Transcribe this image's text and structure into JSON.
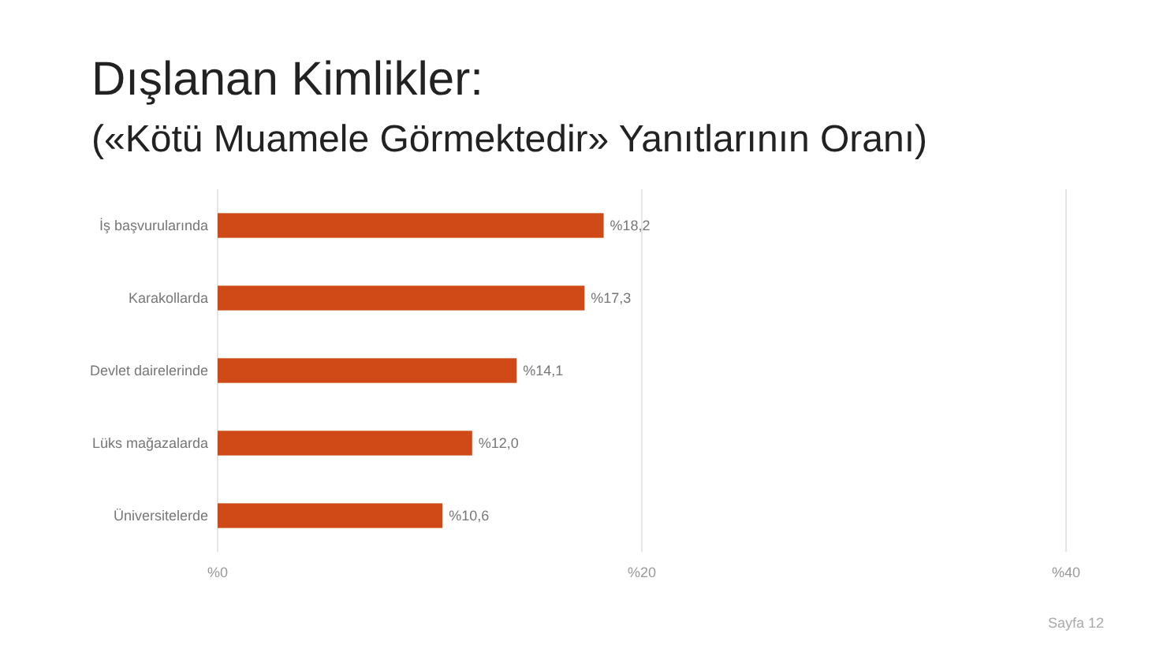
{
  "chart_data": {
    "type": "bar",
    "orientation": "horizontal",
    "title": "Dışlanan Kimlikler:",
    "subtitle": "(«Kötü Muamele Görmektedir» Yanıtlarının Oranı)",
    "categories": [
      "İş başvurularında",
      "Karakollarda",
      "Devlet dairelerinde",
      "Lüks mağazalarda",
      "Üniversitelerde"
    ],
    "values": [
      18.2,
      17.3,
      14.1,
      12.0,
      10.6
    ],
    "color": "#d04a18",
    "value_labels": [
      "%18,2",
      "%17,3",
      "%14,1",
      "%12,0",
      "%10,6"
    ],
    "xlim": [
      0,
      40
    ],
    "xticks": [
      {
        "value": 0,
        "label": "%0"
      },
      {
        "value": 20,
        "label": "%20"
      },
      {
        "value": 40,
        "label": "%40"
      }
    ],
    "grid": "x",
    "annotations": [
      "Sayfa 12"
    ]
  }
}
